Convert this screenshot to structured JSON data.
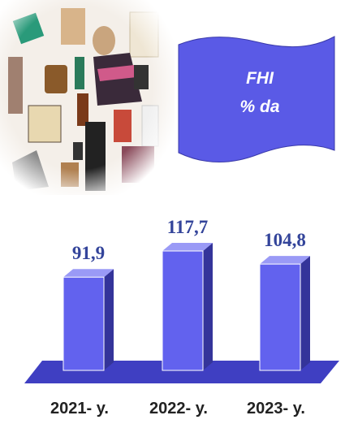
{
  "chart_data": {
    "type": "bar3d",
    "annotations": [
      "FHI",
      "% da"
    ],
    "categories": [
      "2021- y.",
      "2022- y.",
      "2023- y."
    ],
    "values": [
      91.9,
      117.7,
      104.8
    ],
    "value_labels": [
      "91,9",
      "117,7",
      "104,8"
    ],
    "color": "#6262ee"
  }
}
